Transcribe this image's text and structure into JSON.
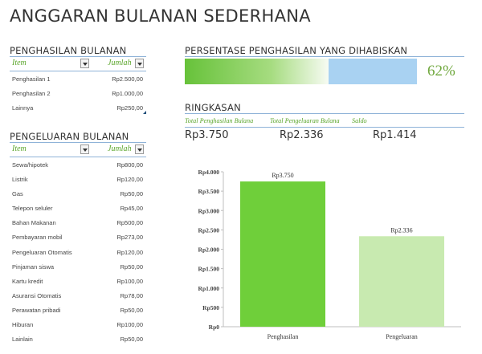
{
  "title": "ANGGARAN BULANAN SEDERHANA",
  "income": {
    "heading": "PENGHASILAN BULANAN",
    "col_item": "Item",
    "col_amount": "Jumlah",
    "rows": [
      {
        "label": "Penghasilan 1",
        "value": "Rp2.500,00"
      },
      {
        "label": "Penghasilan 2",
        "value": "Rp1.000,00"
      },
      {
        "label": "Lainnya",
        "value": "Rp250,00"
      }
    ]
  },
  "expenses": {
    "heading": "PENGELUARAN BULANAN",
    "col_item": "Item",
    "col_amount": "Jumlah",
    "rows": [
      {
        "label": "Sewa/hipotek",
        "value": "Rp800,00"
      },
      {
        "label": "Listrik",
        "value": "Rp120,00"
      },
      {
        "label": "Gas",
        "value": "Rp50,00"
      },
      {
        "label": "Telepon seluler",
        "value": "Rp45,00"
      },
      {
        "label": "Bahan Makanan",
        "value": "Rp500,00"
      },
      {
        "label": "Pembayaran mobil",
        "value": "Rp273,00"
      },
      {
        "label": "Pengeluaran Otomatis",
        "value": "Rp120,00"
      },
      {
        "label": "Pinjaman siswa",
        "value": "Rp50,00"
      },
      {
        "label": "Kartu kredit",
        "value": "Rp100,00"
      },
      {
        "label": "Asuransi Otomatis",
        "value": "Rp78,00"
      },
      {
        "label": "Perawatan pribadi",
        "value": "Rp50,00"
      },
      {
        "label": "Hiburan",
        "value": "Rp100,00"
      },
      {
        "label": "Lainlain",
        "value": "Rp50,00"
      }
    ]
  },
  "percent_spent": {
    "heading": "PERSENTASE PENGHASILAN YANG DIHABISKAN",
    "value_label": "62%",
    "fraction": 0.62,
    "fill_color": "#67c23a",
    "rest_color": "#a9d2f2"
  },
  "summary": {
    "heading": "RINGKASAN",
    "col_income": "Total Penghasilan Bulana",
    "col_expense": "Total Pengeluaran Bulana",
    "col_balance": "Saldo",
    "total_income": "Rp3.750",
    "total_expense": "Rp2.336",
    "balance": "Rp1.414"
  },
  "chart_data": {
    "type": "bar",
    "categories": [
      "Penghasilan",
      "Pengeluaran"
    ],
    "values": [
      3750,
      2336
    ],
    "value_labels": [
      "Rp3.750",
      "Rp2.336"
    ],
    "colors": [
      "#6fcf3a",
      "#c8eab0"
    ],
    "ylim": [
      0,
      4000
    ],
    "yticks": [
      0,
      500,
      1000,
      1500,
      2000,
      2500,
      3000,
      3500,
      4000
    ],
    "ytick_labels": [
      "Rp0",
      "Rp500",
      "Rp1.000",
      "Rp1.500",
      "Rp2.000",
      "Rp2.500",
      "Rp3.000",
      "Rp3.500",
      "Rp4.000"
    ],
    "grid": false,
    "legend": "none"
  }
}
